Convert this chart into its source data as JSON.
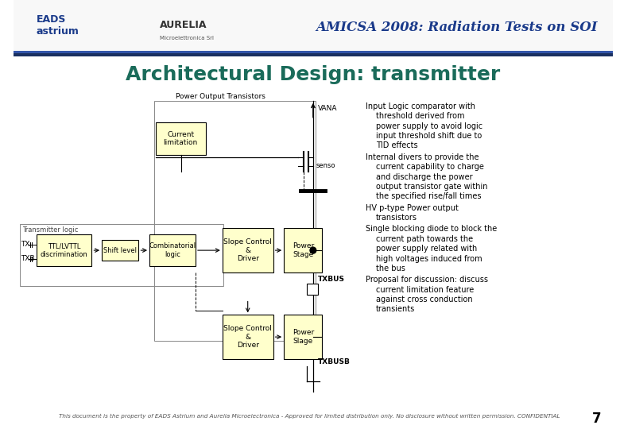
{
  "title_header": "AMICSA 2008: Radiation Tests on SOI",
  "slide_title": "Architectural Design: transmitter",
  "header_bar_dark": "#1a3060",
  "header_bar_mid": "#3355aa",
  "title_color": "#1a6b5a",
  "header_title_color": "#1a3a8a",
  "slide_bg": "#ffffff",
  "box_fill": "#ffffcc",
  "box_edge": "#000000",
  "footer_text": "This document is the property of EADS Astrium and Aurelia Microelectronica - Approved for limited distribution only. No disclosure without written permission. CONFIDENTIAL",
  "page_number": "7",
  "diagram_label_pot": "Power Output Transistors",
  "diagram_label_tl": "Transmitter logic",
  "diagram_label_vana": "VANA",
  "diagram_label_senso": "senso",
  "diagram_label_txbus": "TXBUS",
  "diagram_label_txbusb": "TXBUSB",
  "diagram_label_tx": "TX",
  "diagram_label_txb": "TXB",
  "box1_text": "Current\nlimitation",
  "box2_text": "TTL/LVTTL\ndiscrimination",
  "box3_text": "Shift level",
  "box4_text": "Combinatorial\nlogic",
  "box5_text": "Slope Control\n&\nDriver",
  "box6_text": "Power\nStage",
  "box7_text": "Slope Control\n&\nDriver",
  "box8_text": "Power\nSlage",
  "bullets": [
    {
      "first": "Input Logic comparator with",
      "rest": [
        "threshold derived from",
        "power supply to avoid logic",
        "input threshold shift due to",
        "TID effects"
      ]
    },
    {
      "first": "Internal divers to provide the",
      "rest": [
        "current capability to charge",
        "and discharge the power",
        "output transistor gate within",
        "the specified rise/fall times"
      ]
    },
    {
      "first": "HV p-type Power output",
      "rest": [
        "transistors"
      ]
    },
    {
      "first": "Single blocking diode to block the",
      "rest": [
        "current path towards the",
        "power supply related with",
        "high voltages induced from",
        "the bus"
      ]
    },
    {
      "first": "Proposal for discussion: discuss",
      "rest": [
        "current limitation feature",
        "against cross conduction",
        "transients"
      ]
    }
  ]
}
